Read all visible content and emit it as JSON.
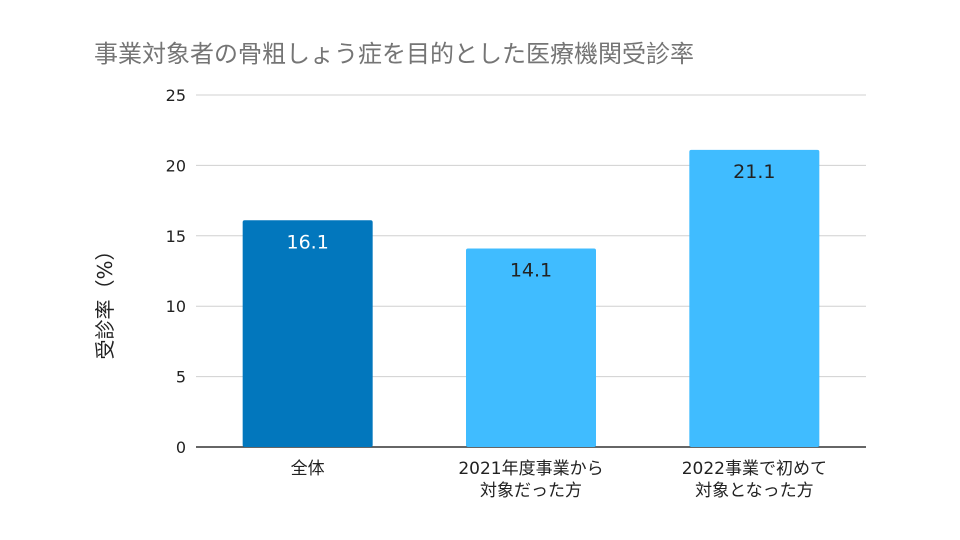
{
  "chart_data": {
    "type": "bar",
    "title": "事業対象者の骨粗しょう症を目的とした医療機関受診率",
    "ylabel": "受診率（%）",
    "xlabel": "",
    "ylim": [
      0,
      25
    ],
    "yticks": [
      "0",
      "5",
      "10",
      "15",
      "20",
      "25"
    ],
    "grid": true,
    "categories": [
      [
        "全体"
      ],
      [
        "2021年度事業から",
        "対象だった方"
      ],
      [
        "2022事業で初めて",
        "対象となった方"
      ]
    ],
    "values": [
      16.1,
      14.1,
      21.1
    ],
    "value_labels": [
      "16.1",
      "14.1",
      "21.1"
    ],
    "colors": [
      "#0277BD",
      "#40BCFF",
      "#40BCFF"
    ],
    "label_colors": [
      "#ffffff",
      "#222222",
      "#222222"
    ]
  }
}
